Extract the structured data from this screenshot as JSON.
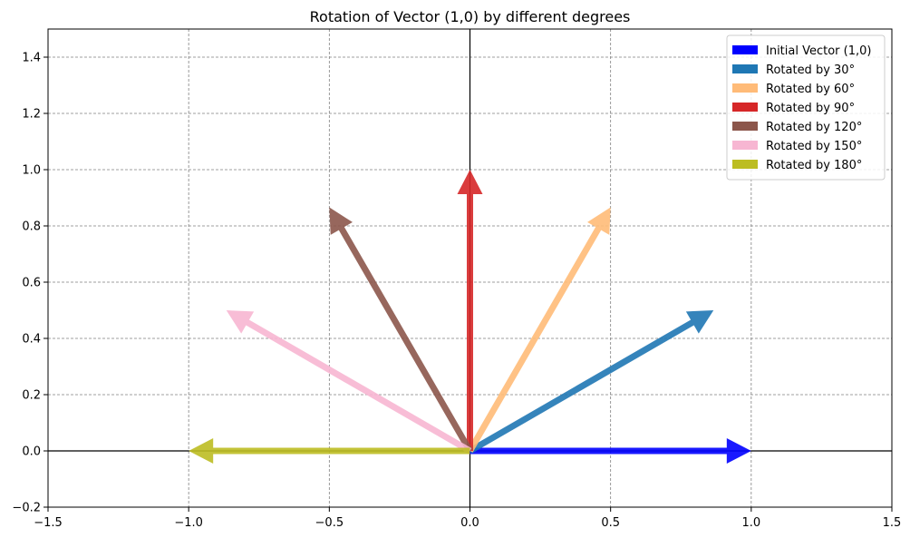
{
  "chart_data": {
    "type": "vector-plot",
    "title": "Rotation of Vector (1,0) by different degrees",
    "xlabel": "",
    "ylabel": "",
    "xlim": [
      -1.5,
      1.5
    ],
    "ylim": [
      -0.2,
      1.5
    ],
    "xticks": [
      -1.5,
      -1.0,
      -0.5,
      0.0,
      0.5,
      1.0,
      1.5
    ],
    "yticks": [
      -0.2,
      0.0,
      0.2,
      0.4,
      0.6,
      0.8,
      1.0,
      1.2,
      1.4
    ],
    "xtick_labels": [
      "−1.5",
      "−1.0",
      "−0.5",
      "0.0",
      "0.5",
      "1.0",
      "1.5"
    ],
    "ytick_labels": [
      "−0.2",
      "0.0",
      "0.2",
      "0.4",
      "0.6",
      "0.8",
      "1.0",
      "1.2",
      "1.4"
    ],
    "grid": true,
    "legend_position": "top-right",
    "series": [
      {
        "name": "Initial Vector (1,0)",
        "x": 1.0,
        "y": 0.0,
        "color": "#0000ff"
      },
      {
        "name": "Rotated by 30°",
        "x": 0.866,
        "y": 0.5,
        "color": "#1f77b4"
      },
      {
        "name": "Rotated by 60°",
        "x": 0.5,
        "y": 0.866,
        "color": "#ffbb78"
      },
      {
        "name": "Rotated by 90°",
        "x": 0.0,
        "y": 1.0,
        "color": "#d62728"
      },
      {
        "name": "Rotated by 120°",
        "x": -0.5,
        "y": 0.866,
        "color": "#8c564b"
      },
      {
        "name": "Rotated by 150°",
        "x": -0.866,
        "y": 0.5,
        "color": "#f7b6d2"
      },
      {
        "name": "Rotated by 180°",
        "x": -1.0,
        "y": 0.0,
        "color": "#bcbd22"
      }
    ]
  }
}
